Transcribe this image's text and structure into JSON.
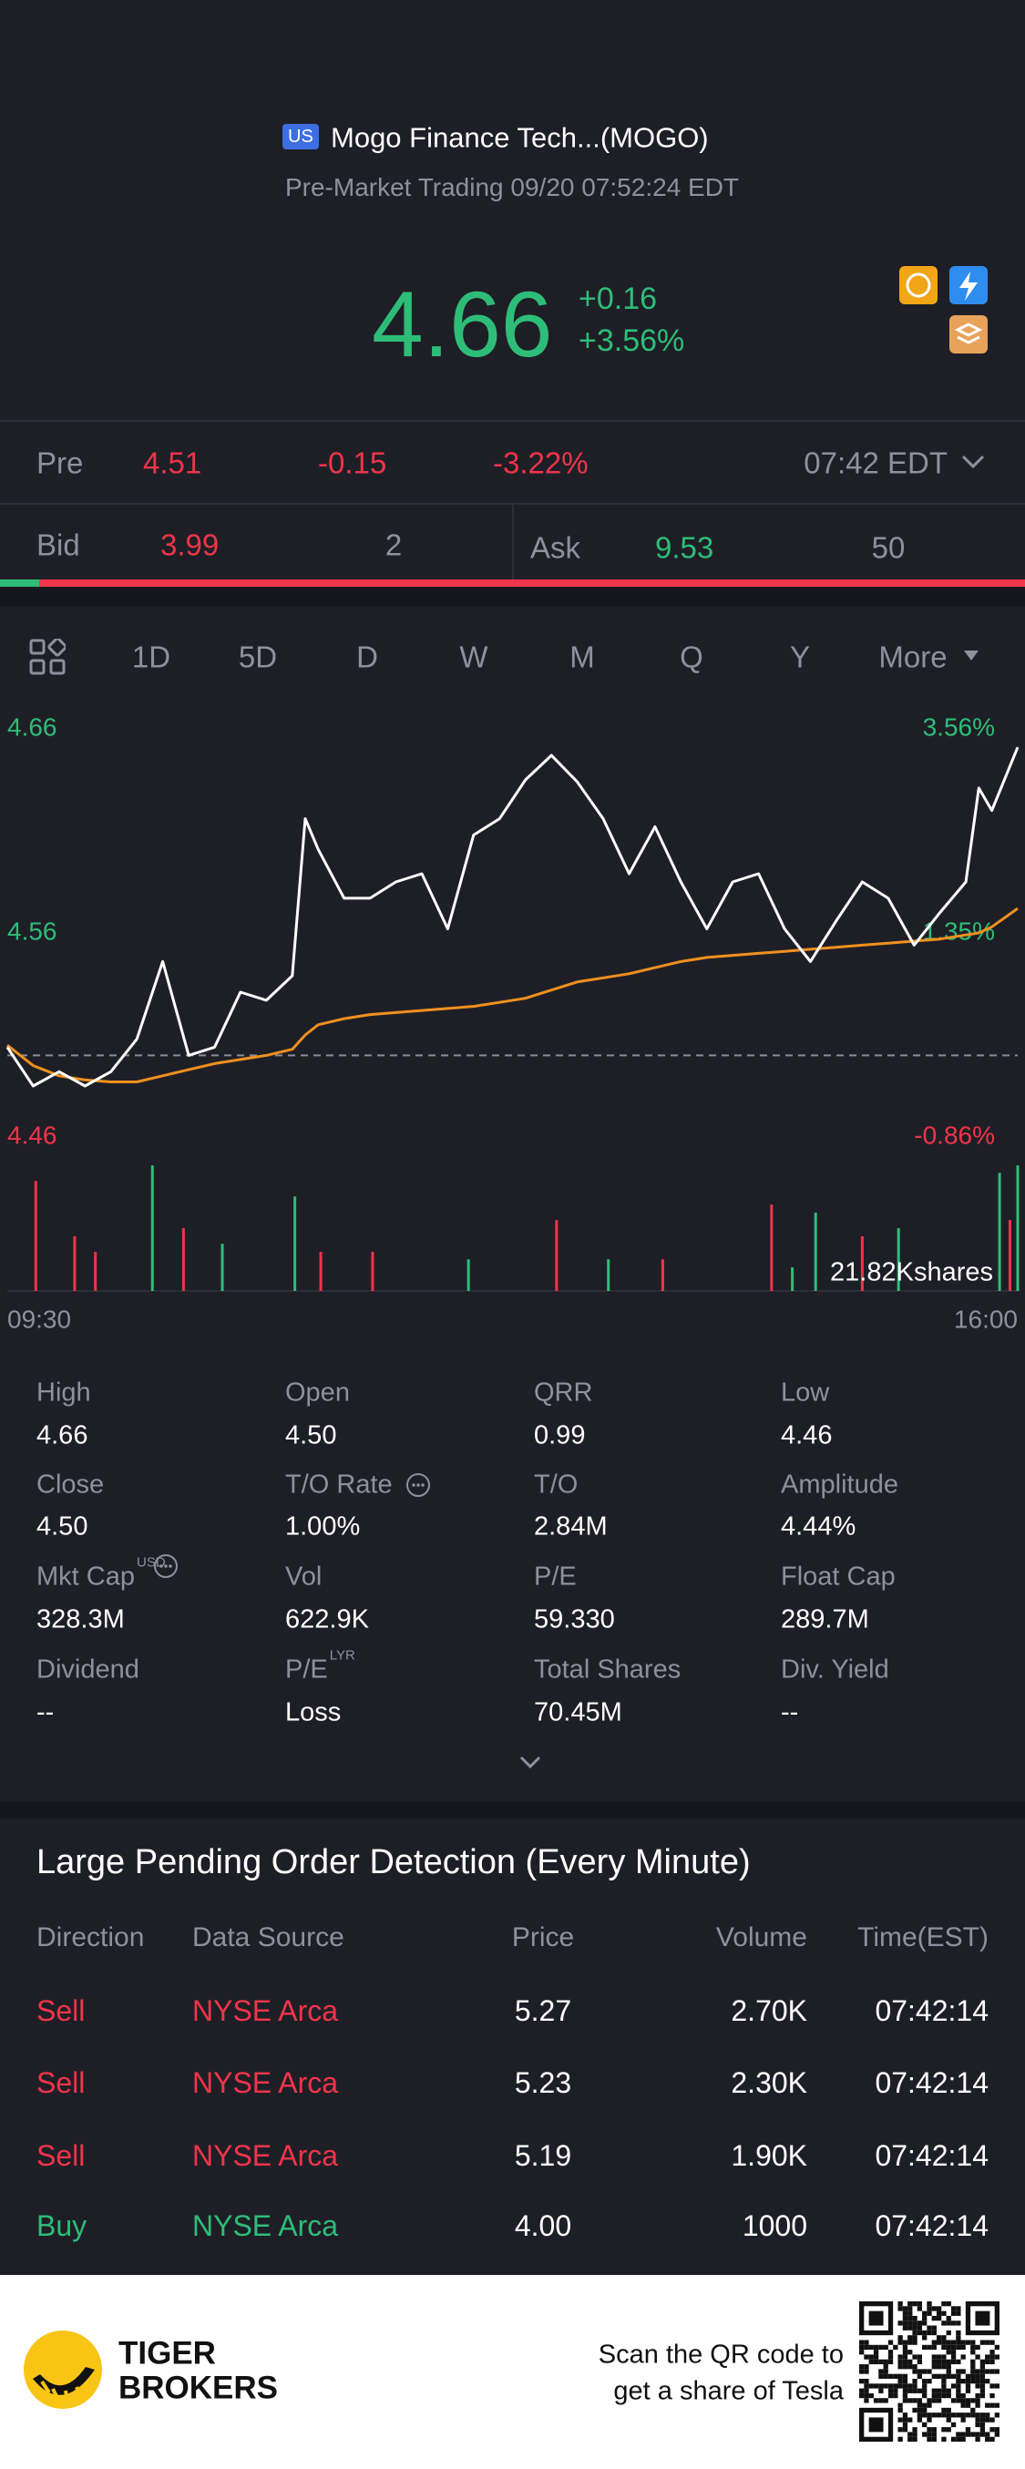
{
  "header": {
    "market_badge": "US",
    "name": "Mogo Finance Tech...(MOGO)",
    "status": "Pre-Market Trading 09/20 07:52:24 EDT"
  },
  "quote": {
    "price": "4.66",
    "change": "+0.16",
    "change_pct": "+3.56%"
  },
  "pre": {
    "label": "Pre",
    "price": "4.51",
    "change": "-0.15",
    "change_pct": "-3.22%",
    "time": "07:42 EDT"
  },
  "bidask": {
    "bid_label": "Bid",
    "bid": "3.99",
    "bid_size": "2",
    "ask_label": "Ask",
    "ask": "9.53",
    "ask_size": "50"
  },
  "tabs": {
    "items": [
      "1D",
      "5D",
      "D",
      "W",
      "M",
      "Q",
      "Y",
      "More"
    ],
    "active": 0
  },
  "chart_data": [
    {
      "type": "line",
      "x": [
        0,
        10,
        20,
        30,
        40,
        50,
        60,
        70,
        80,
        90,
        100,
        110,
        115,
        120,
        130,
        140,
        150,
        160,
        170,
        180,
        190,
        200,
        210,
        220,
        230,
        240,
        250,
        260,
        270,
        280,
        290,
        300,
        310,
        320,
        330,
        340,
        350,
        360,
        370,
        375,
        380,
        390
      ],
      "xlim": [
        0,
        390
      ],
      "xticks": [
        {
          "value": 0,
          "label": "09:30"
        },
        {
          "value": 390,
          "label": "16:00"
        }
      ],
      "ylim": [
        4.46,
        4.66
      ],
      "yticks": [
        4.46,
        4.56,
        4.66
      ],
      "y2lim": [
        -0.86,
        3.56
      ],
      "y2ticks": [
        {
          "value": -0.86,
          "label": "-0.86%"
        },
        {
          "value": 1.35,
          "label": "1.35%"
        },
        {
          "value": 3.56,
          "label": "3.56%"
        }
      ],
      "reference_line": 4.5,
      "series": [
        {
          "color": "#ffffff",
          "values": [
            4.504,
            4.485,
            4.492,
            4.485,
            4.492,
            4.508,
            4.546,
            4.5,
            4.504,
            4.531,
            4.527,
            4.539,
            4.616,
            4.601,
            4.577,
            4.577,
            4.585,
            4.589,
            4.562,
            4.608,
            4.616,
            4.635,
            4.647,
            4.634,
            4.616,
            4.589,
            4.612,
            4.585,
            4.562,
            4.585,
            4.589,
            4.562,
            4.546,
            4.566,
            4.585,
            4.577,
            4.554,
            4.57,
            4.585,
            4.631,
            4.62,
            4.651
          ]
        },
        {
          "color": "#f0901e",
          "values": [
            4.505,
            4.495,
            4.49,
            4.488,
            4.487,
            4.487,
            4.49,
            4.493,
            4.496,
            4.498,
            4.5,
            4.503,
            4.51,
            4.515,
            4.518,
            4.52,
            4.521,
            4.522,
            4.523,
            4.524,
            4.526,
            4.528,
            4.532,
            4.536,
            4.538,
            4.54,
            4.543,
            4.546,
            4.548,
            4.549,
            4.55,
            4.551,
            4.552,
            4.553,
            4.554,
            4.555,
            4.556,
            4.557,
            4.559,
            4.56,
            4.563,
            4.572
          ]
        }
      ]
    },
    {
      "type": "bar",
      "x": [
        11,
        26,
        34,
        56,
        68,
        83,
        111,
        121,
        141,
        178,
        212,
        232,
        253,
        295,
        303,
        312,
        330,
        344,
        383,
        387,
        390
      ],
      "xlim": [
        0,
        390
      ],
      "ylim": [
        0,
        21820
      ],
      "values": [
        19100,
        9500,
        6800,
        21800,
        10900,
        8200,
        16400,
        6800,
        6800,
        5500,
        12300,
        5500,
        5500,
        15000,
        4100,
        13600,
        9500,
        10900,
        20500,
        12300,
        21800
      ],
      "colors": [
        "#f0344a",
        "#f0344a",
        "#f0344a",
        "#2ebd78",
        "#f0344a",
        "#2ebd78",
        "#2ebd78",
        "#f0344a",
        "#f0344a",
        "#2ebd78",
        "#f0344a",
        "#2ebd78",
        "#f0344a",
        "#f0344a",
        "#2ebd78",
        "#2ebd78",
        "#f0344a",
        "#2ebd78",
        "#2ebd78",
        "#f0344a",
        "#2ebd78"
      ],
      "max_label": "21.82Kshares"
    }
  ],
  "stats": [
    {
      "label": "High",
      "value": "4.66"
    },
    {
      "label": "Open",
      "value": "4.50"
    },
    {
      "label": "QRR",
      "value": "0.99"
    },
    {
      "label": "Low",
      "value": "4.46"
    },
    {
      "label": "Close",
      "value": "4.50"
    },
    {
      "label": "T/O Rate",
      "value": "1.00%",
      "info": true
    },
    {
      "label": "T/O",
      "value": "2.84M"
    },
    {
      "label": "Amplitude",
      "value": "4.44%"
    },
    {
      "label": "Mkt Cap",
      "sup": "USD",
      "value": "328.3M",
      "info": true
    },
    {
      "label": "Vol",
      "value": "622.9K"
    },
    {
      "label": "P/E",
      "value": "59.330"
    },
    {
      "label": "Float Cap",
      "value": "289.7M"
    },
    {
      "label": "Dividend",
      "value": "--"
    },
    {
      "label": "P/E",
      "sup": "LYR",
      "value": "Loss"
    },
    {
      "label": "Total Shares",
      "value": "70.45M"
    },
    {
      "label": "Div. Yield",
      "value": "--"
    }
  ],
  "orders": {
    "title": "Large Pending Order Detection (Every Minute)",
    "columns": [
      "Direction",
      "Data Source",
      "Price",
      "Volume",
      "Time(EST)"
    ],
    "rows": [
      [
        "Sell",
        "NYSE Arca",
        "5.27",
        "2.70K",
        "07:42:14"
      ],
      [
        "Sell",
        "NYSE Arca",
        "5.23",
        "2.30K",
        "07:42:14"
      ],
      [
        "Sell",
        "NYSE Arca",
        "5.19",
        "1.90K",
        "07:42:14"
      ],
      [
        "Buy",
        "NYSE Arca",
        "4.00",
        "1000",
        "07:42:14"
      ]
    ],
    "row_colors": [
      "#f0344a",
      "#f0344a",
      "#f0344a",
      "#2ebd78"
    ]
  },
  "footer": {
    "brand": [
      "TIGER",
      "BROKERS"
    ],
    "promo": [
      "Scan the QR code to",
      "get a share of Tesla"
    ]
  }
}
